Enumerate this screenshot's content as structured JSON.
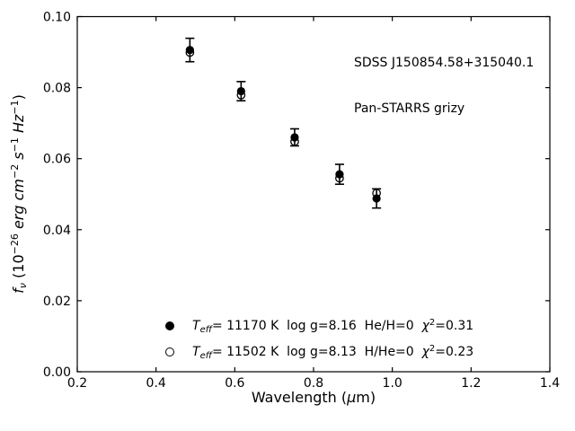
{
  "figure": {
    "annotation": {
      "line1": "SDSS J150854.58+315040.1",
      "line2": "Pan-STARRS grizy"
    },
    "xlabel": {
      "pre": "Wavelength (",
      "mu": "μ",
      "post": "m)"
    },
    "ylabel": {
      "f": "f",
      "nu": "ν",
      "open_paren": " (10",
      "exp26": "−26",
      "erg_cm": " erg cm",
      "exp_m2": "−2",
      "s": " s",
      "exp_m1a": "−1",
      "hz": " Hz",
      "exp_m1b": "−1",
      "close_paren": ")"
    },
    "legend": {
      "entries": [
        {
          "marker": "filled-circle",
          "t_symbol": "T",
          "t_subscript": "eff",
          "body": "= 11170 K  log g=8.16  He/H=0  ",
          "chi_symbol": "χ",
          "chi_superscript": "2",
          "chi_value": "=0.31"
        },
        {
          "marker": "open-circle",
          "t_symbol": "T",
          "t_subscript": "eff",
          "body": "= 11502 K  log g=8.13  H/He=0  ",
          "chi_symbol": "χ",
          "chi_superscript": "2",
          "chi_value": "=0.23"
        }
      ]
    }
  },
  "colors": {
    "foreground": "#000000",
    "background": "#ffffff"
  },
  "chart_data": {
    "type": "scatter",
    "title": "",
    "annotation": [
      "SDSS J150854.58+315040.1",
      "Pan-STARRS grizy"
    ],
    "xlabel": "Wavelength (μm)",
    "ylabel": "f_ν (10^−26 erg cm^−2 s^−1 Hz^−1)",
    "xlim": [
      0.2,
      1.4
    ],
    "ylim": [
      0.0,
      0.1
    ],
    "xticks": [
      0.2,
      0.4,
      0.6,
      0.8,
      1.0,
      1.2,
      1.4
    ],
    "yticks": [
      0.0,
      0.02,
      0.04,
      0.06,
      0.08,
      0.1
    ],
    "grid": false,
    "legend_position": "lower center",
    "bands": [
      "g",
      "r",
      "i",
      "z",
      "y"
    ],
    "series": [
      {
        "name": "Teff= 11170 K  log g=8.16  He/H=0  chi2=0.31",
        "marker": "filled-circle",
        "x": [
          0.486,
          0.616,
          0.752,
          0.866,
          0.96
        ],
        "y": [
          0.0906,
          0.079,
          0.066,
          0.0556,
          0.0488
        ],
        "yerr": [
          0.0033,
          0.0027,
          0.0024,
          0.0028,
          0.0027
        ]
      },
      {
        "name": "Teff= 11502 K  log g=8.13  H/He=0  chi2=0.23",
        "marker": "open-circle",
        "x": [
          0.486,
          0.616,
          0.752,
          0.866,
          0.96
        ],
        "y": [
          0.0899,
          0.0779,
          0.0648,
          0.0545,
          0.0503
        ]
      }
    ]
  }
}
